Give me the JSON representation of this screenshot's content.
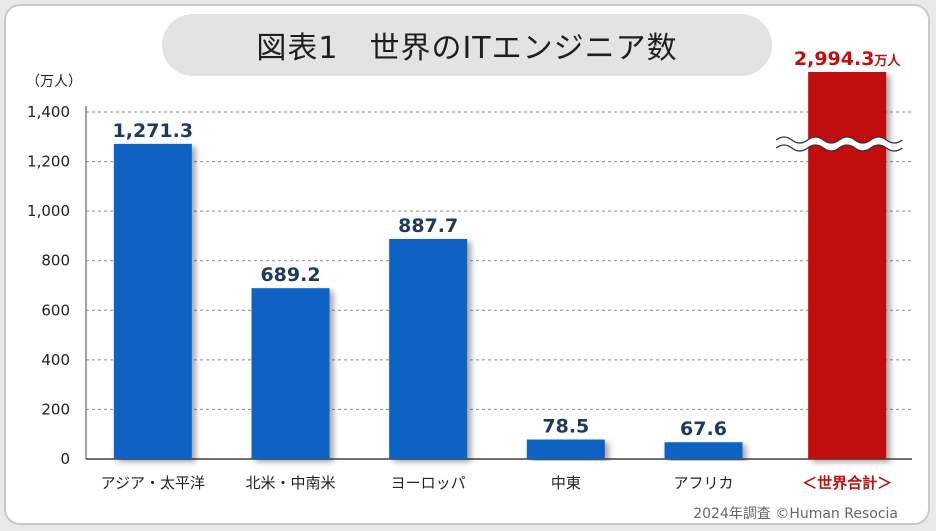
{
  "chart_data": {
    "type": "bar",
    "title": "図表1　世界のITエンジニア数",
    "unit_label": "（万人）",
    "ylim": [
      0,
      1400
    ],
    "yticks": [
      0,
      200,
      400,
      600,
      800,
      1000,
      1200,
      1400
    ],
    "ytick_labels": [
      "0",
      "200",
      "400",
      "600",
      "800",
      "1,000",
      "1,200",
      "1,400"
    ],
    "grid": "dashed-horizontal",
    "categories": [
      "アジア・太平洋",
      "北米・中南米",
      "ヨーロッパ",
      "中東",
      "アフリカ",
      "＜世界合計＞"
    ],
    "values": [
      1271.3,
      689.2,
      887.7,
      78.5,
      67.6,
      2994.3
    ],
    "value_labels": [
      "1,271.3",
      "689.2",
      "887.7",
      "78.5",
      "67.6",
      "2,994.3"
    ],
    "total_unit_suffix": "万人",
    "axis_break_on": "＜世界合計＞",
    "colors": {
      "bar": "#0b62c4",
      "total_bar": "#c10e0e",
      "label": "#1d3b60",
      "total_label": "#c10e0e"
    }
  },
  "source": "2024年調査 ©Human Resocia"
}
